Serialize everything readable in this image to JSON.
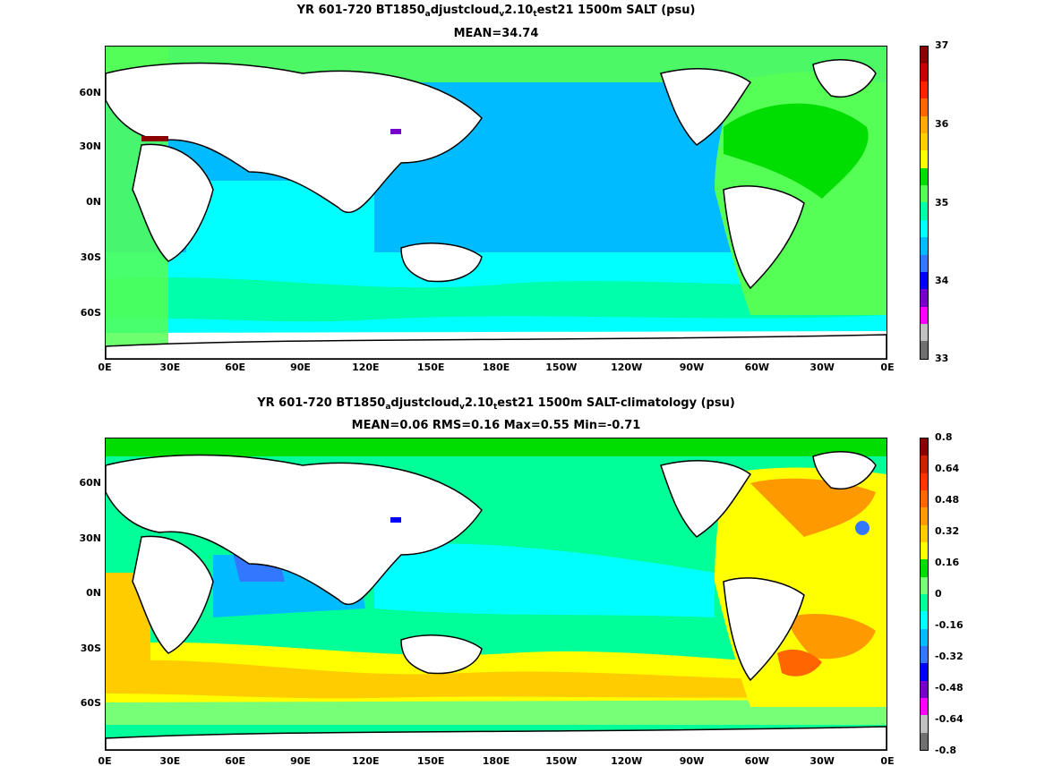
{
  "top": {
    "title_parts": [
      "YR 601-720 BT1850",
      "a",
      "djustcloud",
      "v",
      "2.10",
      "t",
      "est21 1500m SALT (psu)"
    ],
    "subtitle": "MEAN=34.74",
    "cbar_ticks": [
      "37",
      "36",
      "35",
      "34",
      "33"
    ],
    "cbar_colors": [
      "#8b0000",
      "#cc0000",
      "#ff2200",
      "#ff6600",
      "#ffaa00",
      "#ffd000",
      "#ffff00",
      "#00dd00",
      "#55ff55",
      "#00ffaa",
      "#00ffff",
      "#00bbff",
      "#3377ff",
      "#0000ff",
      "#7700cc",
      "#ff00ff",
      "#c0c0c0",
      "#707070"
    ]
  },
  "bottom": {
    "title_parts": [
      "YR 601-720 BT1850",
      "a",
      "djustcloud",
      "v",
      "2.10",
      "t",
      "est21 1500m SALT-climatology (psu)"
    ],
    "subtitle": "MEAN=0.06   RMS=0.16   Max=0.55   Min=-0.71",
    "cbar_ticks": [
      "0.8",
      "0.64",
      "0.48",
      "0.32",
      "0.16",
      "0",
      "-0.16",
      "-0.32",
      "-0.48",
      "-0.64",
      "-0.8"
    ],
    "cbar_colors": [
      "#8b0000",
      "#cc2200",
      "#ff3300",
      "#ff6600",
      "#ff9900",
      "#ffcc00",
      "#ffff00",
      "#00dd00",
      "#77ff77",
      "#00ff99",
      "#00ffff",
      "#00bbff",
      "#3377ff",
      "#0000ff",
      "#7700cc",
      "#ff00ff",
      "#c0c0c0",
      "#707070"
    ]
  },
  "x_ticks": [
    "0E",
    "30E",
    "60E",
    "90E",
    "120E",
    "150E",
    "180E",
    "150W",
    "120W",
    "90W",
    "60W",
    "30W",
    "0E"
  ],
  "y_ticks_top": [
    "60N",
    "30N",
    "0N",
    "30S",
    "60S"
  ],
  "y_ticks_bottom": [
    "60N",
    "30N",
    "0N",
    "30S",
    "60S"
  ]
}
